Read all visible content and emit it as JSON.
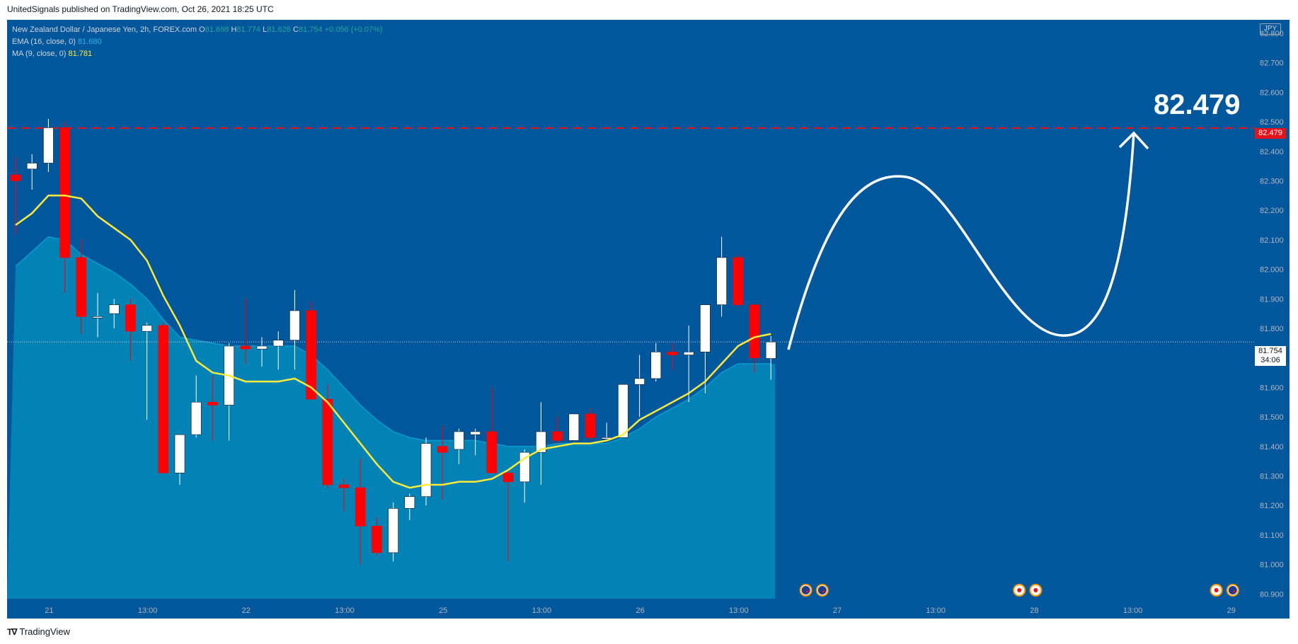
{
  "header": {
    "published": "UnitedSignals published on TradingView.com, Oct 26, 2021 18:25 UTC"
  },
  "footer": {
    "brand": "TradingView"
  },
  "legend": {
    "symbol": "New Zealand Dollar / Japanese Yen, 2h, FOREX.com",
    "o_label": "O",
    "o": "81.698",
    "h_label": "H",
    "h": "81.774",
    "l_label": "L",
    "l": "81.626",
    "c_label": "C",
    "c": "81.754",
    "change": "+0.056 (+0.07%)",
    "ema_label": "EMA (16, close, 0)",
    "ema_value": "81.680",
    "ma_label": "MA (9, close, 0)",
    "ma_value": "81.781"
  },
  "currency": "JPY",
  "target_text": "82.479",
  "last_price": {
    "value": "81.754",
    "countdown": "34:06"
  },
  "chart_data": {
    "type": "candlestick",
    "title": "",
    "xlabel": "",
    "ylabel": "",
    "ylim": [
      80.92,
      82.82
    ],
    "y_ticks": [
      "80.900",
      "81.000",
      "81.100",
      "81.200",
      "81.300",
      "81.400",
      "81.500",
      "81.600",
      "81.700",
      "81.800",
      "81.900",
      "82.000",
      "82.100",
      "82.200",
      "82.300",
      "82.400",
      "82.500",
      "82.600",
      "82.700",
      "82.800"
    ],
    "x_ticks": [
      "21",
      "13:00",
      "22",
      "13:00",
      "25",
      "13:00",
      "26",
      "13:00",
      "27",
      "13:00",
      "28",
      "13:00",
      "29"
    ],
    "grid": false,
    "target_level": 82.479,
    "candles": [
      [
        82.32,
        82.3,
        82.38,
        82.12
      ],
      [
        82.34,
        82.36,
        82.39,
        82.27
      ],
      [
        82.36,
        82.48,
        82.51,
        82.33
      ],
      [
        82.48,
        82.04,
        82.5,
        81.92
      ],
      [
        82.04,
        81.84,
        82.1,
        81.78
      ],
      [
        81.84,
        81.84,
        81.92,
        81.77
      ],
      [
        81.85,
        81.88,
        81.9,
        81.8
      ],
      [
        81.88,
        81.79,
        81.9,
        81.69
      ],
      [
        81.79,
        81.81,
        81.82,
        81.49
      ],
      [
        81.81,
        81.31,
        81.82,
        81.31
      ],
      [
        81.31,
        81.44,
        81.44,
        81.27
      ],
      [
        81.44,
        81.55,
        81.64,
        81.43
      ],
      [
        81.55,
        81.54,
        81.64,
        81.42
      ],
      [
        81.54,
        81.74,
        81.75,
        81.42
      ],
      [
        81.74,
        81.73,
        81.9,
        81.68
      ],
      [
        81.73,
        81.74,
        81.77,
        81.67
      ],
      [
        81.74,
        81.76,
        81.79,
        81.66
      ],
      [
        81.76,
        81.86,
        81.93,
        81.66
      ],
      [
        81.86,
        81.56,
        81.89,
        81.56
      ],
      [
        81.56,
        81.27,
        81.61,
        81.26
      ],
      [
        81.27,
        81.26,
        81.29,
        81.18
      ],
      [
        81.26,
        81.13,
        81.36,
        81.0
      ],
      [
        81.13,
        81.04,
        81.16,
        81.03
      ],
      [
        81.04,
        81.19,
        81.21,
        81.01
      ],
      [
        81.19,
        81.23,
        81.24,
        81.15
      ],
      [
        81.23,
        81.41,
        81.43,
        81.2
      ],
      [
        81.4,
        81.38,
        81.47,
        81.22
      ],
      [
        81.39,
        81.45,
        81.46,
        81.34
      ],
      [
        81.44,
        81.45,
        81.46,
        81.37
      ],
      [
        81.45,
        81.31,
        81.6,
        81.31
      ],
      [
        81.31,
        81.28,
        81.32,
        81.01
      ],
      [
        81.28,
        81.38,
        81.39,
        81.21
      ],
      [
        81.38,
        81.45,
        81.55,
        81.27
      ],
      [
        81.45,
        81.42,
        81.5,
        81.41
      ],
      [
        81.42,
        81.51,
        81.51,
        81.42
      ],
      [
        81.51,
        81.43,
        81.53,
        81.42
      ],
      [
        81.43,
        81.43,
        81.48,
        81.42
      ],
      [
        81.43,
        81.61,
        81.61,
        81.44
      ],
      [
        81.61,
        81.63,
        81.71,
        81.5
      ],
      [
        81.63,
        81.72,
        81.75,
        81.62
      ],
      [
        81.72,
        81.71,
        81.75,
        81.66
      ],
      [
        81.71,
        81.72,
        81.81,
        81.55
      ],
      [
        81.72,
        81.88,
        81.88,
        81.58
      ],
      [
        81.88,
        82.04,
        82.11,
        81.84
      ],
      [
        82.04,
        81.88,
        82.05,
        81.87
      ],
      [
        81.88,
        81.7,
        81.88,
        81.65
      ],
      [
        81.698,
        81.754,
        81.774,
        81.626
      ]
    ],
    "ema": [
      82.01,
      82.06,
      82.11,
      82.1,
      82.05,
      82.02,
      81.99,
      81.95,
      81.9,
      81.83,
      81.77,
      81.76,
      81.75,
      81.74,
      81.74,
      81.74,
      81.74,
      81.74,
      81.71,
      81.66,
      81.6,
      81.54,
      81.49,
      81.45,
      81.43,
      81.42,
      81.42,
      81.42,
      81.42,
      81.41,
      81.4,
      81.4,
      81.4,
      81.41,
      81.41,
      81.41,
      81.41,
      81.43,
      81.46,
      81.5,
      81.53,
      81.56,
      81.6,
      81.65,
      81.68,
      81.68,
      81.68
    ],
    "ma": [
      82.15,
      82.19,
      82.25,
      82.25,
      82.24,
      82.18,
      82.14,
      82.1,
      82.03,
      81.91,
      81.81,
      81.69,
      81.65,
      81.64,
      81.62,
      81.62,
      81.62,
      81.63,
      81.6,
      81.55,
      81.48,
      81.41,
      81.34,
      81.28,
      81.26,
      81.27,
      81.27,
      81.28,
      81.28,
      81.29,
      81.32,
      81.36,
      81.39,
      81.4,
      81.41,
      81.41,
      81.42,
      81.44,
      81.49,
      81.52,
      81.55,
      81.58,
      81.62,
      81.68,
      81.74,
      81.77,
      81.781
    ],
    "events": [
      {
        "x_index": 48,
        "kind": "nz"
      },
      {
        "x_index": 49,
        "kind": "nz"
      },
      {
        "x_index": 61,
        "kind": "jp"
      },
      {
        "x_index": 62,
        "kind": "jp"
      },
      {
        "x_index": 73,
        "kind": "jp"
      },
      {
        "x_index": 74,
        "kind": "nz"
      }
    ]
  }
}
